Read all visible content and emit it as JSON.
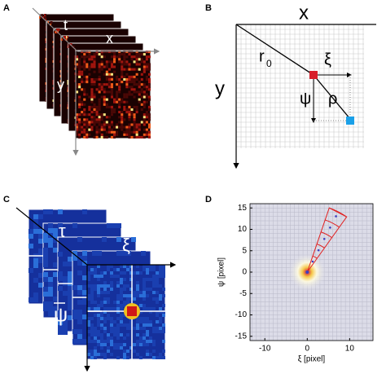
{
  "panels": [
    {
      "label": "A",
      "axis_labels": [
        "t",
        "x",
        "y"
      ]
    },
    {
      "label": "B",
      "axis_labels": [
        "x",
        "y"
      ],
      "symbols": [
        "r",
        "0",
        "ξ",
        "ψ",
        "ρ"
      ]
    },
    {
      "label": "C",
      "axis_labels": [
        "τ",
        "ξ",
        "ψ"
      ]
    },
    {
      "label": "D",
      "x_label": "ξ [pixel]",
      "y_label": "ψ [pixel]",
      "xlim": [
        -13.5,
        15.5
      ],
      "ylim": [
        -16,
        16
      ],
      "xticks": [
        -10,
        0,
        10
      ],
      "yticks": [
        15,
        10,
        5,
        0,
        -5,
        -10,
        -15
      ]
    }
  ]
}
